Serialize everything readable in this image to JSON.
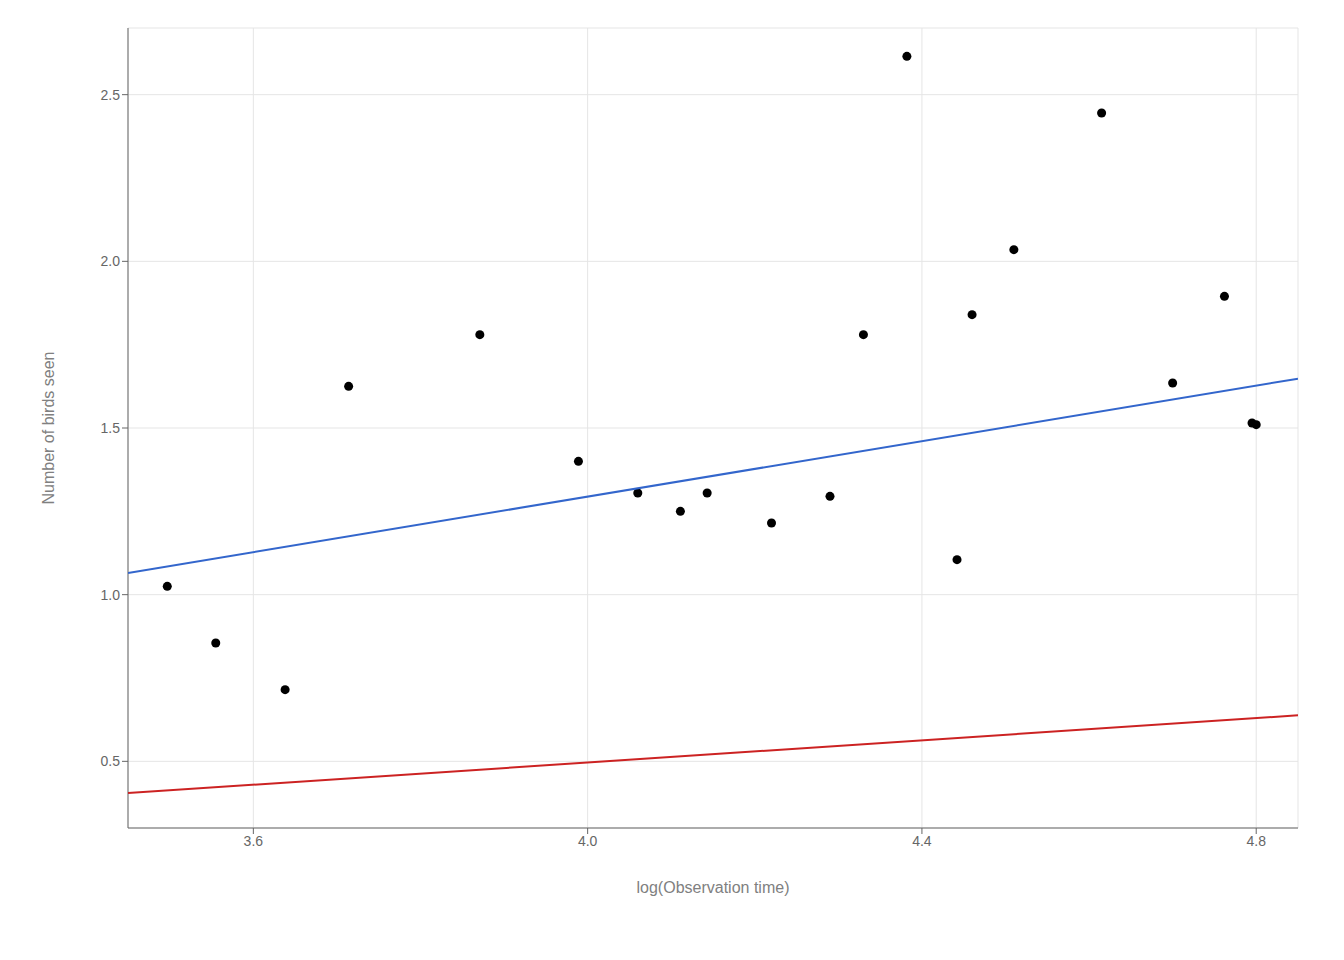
{
  "chart_data": {
    "type": "scatter",
    "xlabel": "log(Observation time)",
    "ylabel": "Number of birds seen",
    "xlim": [
      3.45,
      4.85
    ],
    "ylim": [
      0.3,
      2.7
    ],
    "xticks": [
      3.6,
      {
        "value": 4.0,
        "label": "4.0"
      },
      4.4,
      4.8
    ],
    "yticks": [
      0.5,
      {
        "value": 1.0,
        "label": "1.0"
      },
      1.5,
      {
        "value": 2.0,
        "label": "2.0"
      },
      2.5
    ],
    "grid": true,
    "series": [
      {
        "type": "scatter",
        "color": "#000000",
        "x": [
          3.497,
          3.555,
          3.638,
          3.714,
          3.871,
          3.989,
          4.06,
          4.111,
          4.143,
          4.22,
          4.29,
          4.33,
          4.382,
          4.442,
          4.46,
          4.51,
          4.615,
          4.7,
          4.762,
          4.795,
          4.8
        ],
        "y": [
          1.025,
          0.855,
          0.715,
          1.625,
          1.78,
          1.4,
          1.305,
          1.25,
          1.305,
          1.215,
          1.295,
          1.78,
          2.615,
          1.105,
          1.84,
          2.035,
          2.445,
          1.635,
          1.895,
          1.515,
          1.51
        ]
      },
      {
        "type": "line",
        "color": "#3366cc",
        "x": [
          3.45,
          4.85
        ],
        "y": [
          1.065,
          1.648
        ]
      },
      {
        "type": "line",
        "color": "#cc2222",
        "x": [
          3.45,
          4.85
        ],
        "y": [
          0.405,
          0.638
        ]
      }
    ]
  }
}
